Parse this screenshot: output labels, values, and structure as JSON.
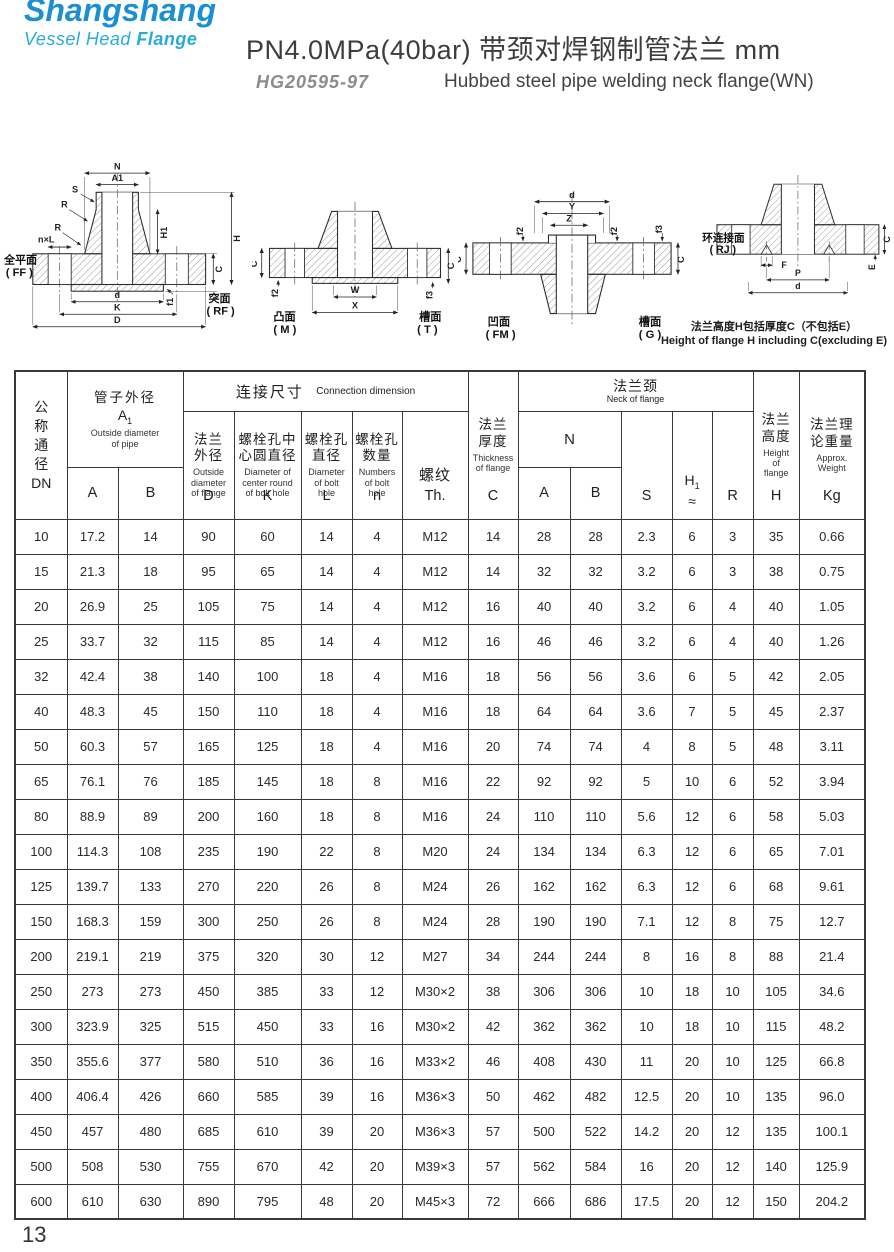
{
  "colors": {
    "logo_primary": "#1a8fd1",
    "logo_secondary": "#29a9e0"
  },
  "header": {
    "logo_line1": "Shangshang",
    "logo_line2a": "Vessel Head",
    "logo_line2b": "Flange",
    "title": "PN4.0MPa(40bar) 带颈对焊钢制管法兰 mm",
    "standard": "HG20595-97",
    "subtitle_en": "Hubbed steel pipe welding neck flange(WN)"
  },
  "figures": [
    {
      "name": "full-face-raised-face",
      "left_cn": "全平面",
      "left_code": "( FF )",
      "right_cn": "突面",
      "right_code": "( RF )",
      "dims": {
        "n": "N",
        "a1": "A1",
        "s": "S",
        "r1": "R",
        "r2": "R",
        "nxl": "n×L",
        "h1": "H1",
        "c": "C",
        "h": "H",
        "f1": "f1",
        "d": "d",
        "k": "K",
        "big_d": "D"
      }
    },
    {
      "name": "male-tongue",
      "left_cn": "凸面",
      "left_code": "( M )",
      "right_cn": "槽面",
      "right_code": "( T )",
      "dims": {
        "c_left": "C",
        "f2_left": "f2",
        "w": "W",
        "x": "X",
        "c_right": "C",
        "f3_right": "f3"
      }
    },
    {
      "name": "female-groove",
      "left_cn": "凹面",
      "left_code": "( FM )",
      "right_cn": "槽面",
      "right_code": "( G )",
      "dims": {
        "d": "d",
        "y": "Y",
        "z": "Z",
        "f2a": "f2",
        "f2b": "f2",
        "f3": "f3",
        "c_left": "C",
        "c_right": "C"
      }
    },
    {
      "name": "ring-joint",
      "left_cn": "环连接面",
      "left_code": "( RJ )",
      "dims": {
        "f": "F",
        "p": "P",
        "d": "d",
        "e": "E",
        "c": "C"
      },
      "note_cn": "法兰高度H包括厚度C（不包括E）",
      "note_en": "Height of flange H including C(excluding E)"
    }
  ],
  "table": {
    "head": {
      "dn_cn": "公\n称\n通\n径",
      "dn_code": "DN",
      "pipe": {
        "cn": "管子外径",
        "sym": "A",
        "sym_sub": "1",
        "en": "Outside diameter\nof pipe",
        "letters": [
          "A",
          "B"
        ]
      },
      "conn": {
        "cn": "连接尺寸",
        "en": "Connection dimension",
        "cols": [
          {
            "cn": "法兰\n外径",
            "en": "Outside\ndiameter\nof flange",
            "letter": "D"
          },
          {
            "cn": "螺栓孔中\n心圆直径",
            "en": "Diameter of\ncenter round\nof bolt hole",
            "letter": "K"
          },
          {
            "cn": "螺栓孔\n直径",
            "en": "Diameter\nof bolt\nhole",
            "letter": "L"
          },
          {
            "cn": "螺栓孔\n数量",
            "en": "Numbers\nof bolt\nhole",
            "letter": "n"
          },
          {
            "cn": "螺纹",
            "en": "",
            "letter": "Th."
          }
        ]
      },
      "c": {
        "cn": "法兰\n厚度",
        "en": "Thickness\nof flange",
        "letter": "C"
      },
      "neck": {
        "cn": "法兰颈",
        "en": "Neck of flange",
        "n": "N",
        "letters": [
          "A",
          "B"
        ],
        "s": "S",
        "h1": "H",
        "h1_sub": "1",
        "approx": "≈",
        "r": "R"
      },
      "h": {
        "cn": "法兰\n高度",
        "en": "Height\nof\nflange",
        "letter": "H"
      },
      "kg": {
        "cn": "法兰理\n论重量",
        "en": "Approx.\nWeight",
        "letter": "Kg"
      }
    },
    "rows": [
      [
        "10",
        "17.2",
        "14",
        "90",
        "60",
        "14",
        "4",
        "M12",
        "14",
        "28",
        "28",
        "2.3",
        "6",
        "3",
        "35",
        "0.66"
      ],
      [
        "15",
        "21.3",
        "18",
        "95",
        "65",
        "14",
        "4",
        "M12",
        "14",
        "32",
        "32",
        "3.2",
        "6",
        "3",
        "38",
        "0.75"
      ],
      [
        "20",
        "26.9",
        "25",
        "105",
        "75",
        "14",
        "4",
        "M12",
        "16",
        "40",
        "40",
        "3.2",
        "6",
        "4",
        "40",
        "1.05"
      ],
      [
        "25",
        "33.7",
        "32",
        "115",
        "85",
        "14",
        "4",
        "M12",
        "16",
        "46",
        "46",
        "3.2",
        "6",
        "4",
        "40",
        "1.26"
      ],
      [
        "32",
        "42.4",
        "38",
        "140",
        "100",
        "18",
        "4",
        "M16",
        "18",
        "56",
        "56",
        "3.6",
        "6",
        "5",
        "42",
        "2.05"
      ],
      [
        "40",
        "48.3",
        "45",
        "150",
        "110",
        "18",
        "4",
        "M16",
        "18",
        "64",
        "64",
        "3.6",
        "7",
        "5",
        "45",
        "2.37"
      ],
      [
        "50",
        "60.3",
        "57",
        "165",
        "125",
        "18",
        "4",
        "M16",
        "20",
        "74",
        "74",
        "4",
        "8",
        "5",
        "48",
        "3.11"
      ],
      [
        "65",
        "76.1",
        "76",
        "185",
        "145",
        "18",
        "8",
        "M16",
        "22",
        "92",
        "92",
        "5",
        "10",
        "6",
        "52",
        "3.94"
      ],
      [
        "80",
        "88.9",
        "89",
        "200",
        "160",
        "18",
        "8",
        "M16",
        "24",
        "110",
        "110",
        "5.6",
        "12",
        "6",
        "58",
        "5.03"
      ],
      [
        "100",
        "114.3",
        "108",
        "235",
        "190",
        "22",
        "8",
        "M20",
        "24",
        "134",
        "134",
        "6.3",
        "12",
        "6",
        "65",
        "7.01"
      ],
      [
        "125",
        "139.7",
        "133",
        "270",
        "220",
        "26",
        "8",
        "M24",
        "26",
        "162",
        "162",
        "6.3",
        "12",
        "6",
        "68",
        "9.61"
      ],
      [
        "150",
        "168.3",
        "159",
        "300",
        "250",
        "26",
        "8",
        "M24",
        "28",
        "190",
        "190",
        "7.1",
        "12",
        "8",
        "75",
        "12.7"
      ],
      [
        "200",
        "219.1",
        "219",
        "375",
        "320",
        "30",
        "12",
        "M27",
        "34",
        "244",
        "244",
        "8",
        "16",
        "8",
        "88",
        "21.4"
      ],
      [
        "250",
        "273",
        "273",
        "450",
        "385",
        "33",
        "12",
        "M30×2",
        "38",
        "306",
        "306",
        "10",
        "18",
        "10",
        "105",
        "34.6"
      ],
      [
        "300",
        "323.9",
        "325",
        "515",
        "450",
        "33",
        "16",
        "M30×2",
        "42",
        "362",
        "362",
        "10",
        "18",
        "10",
        "115",
        "48.2"
      ],
      [
        "350",
        "355.6",
        "377",
        "580",
        "510",
        "36",
        "16",
        "M33×2",
        "46",
        "408",
        "430",
        "11",
        "20",
        "10",
        "125",
        "66.8"
      ],
      [
        "400",
        "406.4",
        "426",
        "660",
        "585",
        "39",
        "16",
        "M36×3",
        "50",
        "462",
        "482",
        "12.5",
        "20",
        "10",
        "135",
        "96.0"
      ],
      [
        "450",
        "457",
        "480",
        "685",
        "610",
        "39",
        "20",
        "M36×3",
        "57",
        "500",
        "522",
        "14.2",
        "20",
        "12",
        "135",
        "100.1"
      ],
      [
        "500",
        "508",
        "530",
        "755",
        "670",
        "42",
        "20",
        "M39×3",
        "57",
        "562",
        "584",
        "16",
        "20",
        "12",
        "140",
        "125.9"
      ],
      [
        "600",
        "610",
        "630",
        "890",
        "795",
        "48",
        "20",
        "M45×3",
        "72",
        "666",
        "686",
        "17.5",
        "20",
        "12",
        "150",
        "204.2"
      ]
    ]
  },
  "page_number": "13"
}
